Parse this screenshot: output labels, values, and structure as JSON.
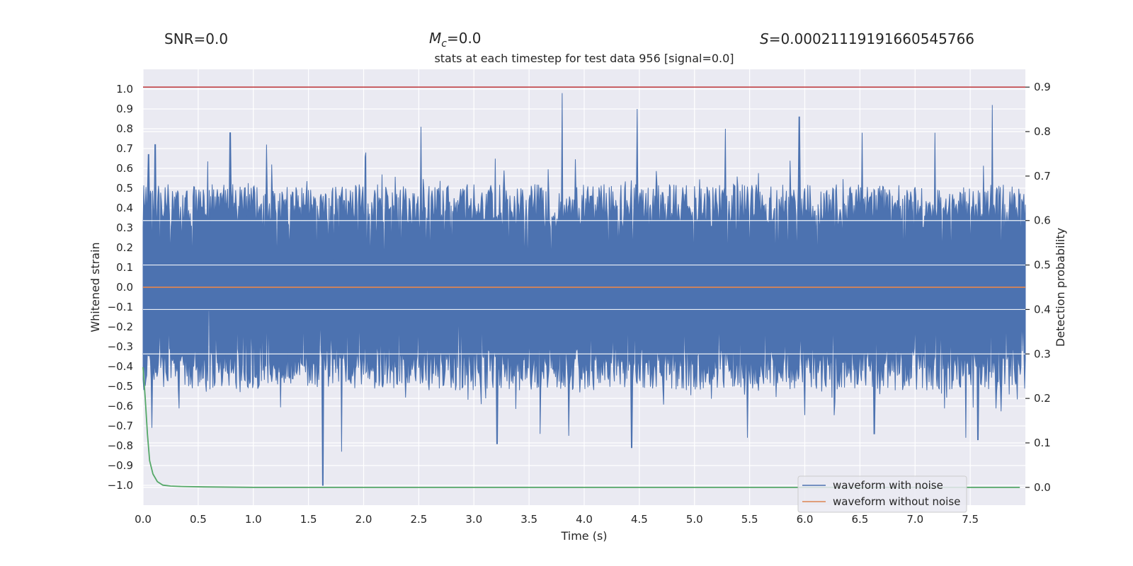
{
  "chart_data": {
    "type": "line",
    "title": "stats at each timestep for test data 956 [signal=0.0]",
    "suptitles": {
      "snr": "SNR=0.0",
      "mc_symbol": "M",
      "mc_sub": "c",
      "mc_value": "=0.0",
      "s_symbol": "S",
      "s_value": "=0.00021119191660545766"
    },
    "xlabel": "Time (s)",
    "ylabel": "Whitened strain",
    "y2label": "Detection probability",
    "xlim": [
      0.0,
      8.0
    ],
    "ylim": [
      -1.1,
      1.1
    ],
    "y2lim": [
      -0.04,
      0.94
    ],
    "xticks": [
      0.0,
      0.5,
      1.0,
      1.5,
      2.0,
      2.5,
      3.0,
      3.5,
      4.0,
      4.5,
      5.0,
      5.5,
      6.0,
      6.5,
      7.0,
      7.5
    ],
    "xtick_labels": [
      "0.0",
      "0.5",
      "1.0",
      "1.5",
      "2.0",
      "2.5",
      "3.0",
      "3.5",
      "4.0",
      "4.5",
      "5.0",
      "5.5",
      "6.0",
      "6.5",
      "7.0",
      "7.5"
    ],
    "yticks": [
      1.0,
      0.9,
      0.8,
      0.7,
      0.6,
      0.5,
      0.4,
      0.3,
      0.2,
      0.1,
      0.0,
      -0.1,
      -0.2,
      -0.3,
      -0.4,
      -0.5,
      -0.6,
      -0.7,
      -0.8,
      -0.9,
      -1.0
    ],
    "ytick_labels": [
      "1.0",
      "0.9",
      "0.8",
      "0.7",
      "0.6",
      "0.5",
      "0.4",
      "0.3",
      "0.2",
      "0.1",
      "0.0",
      "−0.1",
      "−0.2",
      "−0.3",
      "−0.4",
      "−0.5",
      "−0.6",
      "−0.7",
      "−0.8",
      "−0.9",
      "−1.0"
    ],
    "y2ticks": [
      0.9,
      0.8,
      0.7,
      0.6,
      0.5,
      0.4,
      0.3,
      0.2,
      0.1,
      0.0
    ],
    "y2tick_labels": [
      "0.9",
      "0.8",
      "0.7",
      "0.6",
      "0.5",
      "0.4",
      "0.3",
      "0.2",
      "0.1",
      "0.0"
    ],
    "series": [
      {
        "name": "waveform with noise",
        "color": "#4c72b0",
        "kind": "noise",
        "envelope_typical": 0.5,
        "peaks": [
          {
            "x": 0.05,
            "y": 0.67
          },
          {
            "x": 0.11,
            "y": 0.72
          },
          {
            "x": 0.79,
            "y": 0.78
          },
          {
            "x": 1.12,
            "y": 0.72
          },
          {
            "x": 2.02,
            "y": 0.68
          },
          {
            "x": 2.52,
            "y": 0.81
          },
          {
            "x": 3.8,
            "y": 0.98
          },
          {
            "x": 4.48,
            "y": 0.9
          },
          {
            "x": 5.28,
            "y": 0.8
          },
          {
            "x": 5.95,
            "y": 0.86
          },
          {
            "x": 6.52,
            "y": 0.78
          },
          {
            "x": 7.18,
            "y": 0.78
          },
          {
            "x": 7.7,
            "y": 0.92
          },
          {
            "x": 0.08,
            "y": -0.71
          },
          {
            "x": 1.63,
            "y": -1.0
          },
          {
            "x": 1.8,
            "y": -0.83
          },
          {
            "x": 3.21,
            "y": -0.79
          },
          {
            "x": 3.6,
            "y": -0.74
          },
          {
            "x": 3.86,
            "y": -0.75
          },
          {
            "x": 4.43,
            "y": -0.81
          },
          {
            "x": 5.48,
            "y": -0.76
          },
          {
            "x": 6.63,
            "y": -0.74
          },
          {
            "x": 7.46,
            "y": -0.76
          },
          {
            "x": 7.57,
            "y": -0.77
          }
        ]
      },
      {
        "name": "waveform without noise",
        "color": "#dd8452",
        "x": [
          0.0,
          8.0
        ],
        "y": [
          0.0,
          0.0
        ]
      },
      {
        "name": "detection probability",
        "axis": "right",
        "color": "#55a868",
        "x": [
          0.0,
          0.02,
          0.04,
          0.06,
          0.09,
          0.13,
          0.18,
          0.25,
          0.35,
          0.55,
          1.0,
          2.0,
          4.0,
          6.0,
          7.95
        ],
        "y": [
          0.27,
          0.2,
          0.12,
          0.06,
          0.03,
          0.013,
          0.005,
          0.003,
          0.002,
          0.001,
          0.0,
          0.0,
          0.0,
          0.0,
          0.0
        ]
      }
    ],
    "hlines": [
      {
        "axis": "right",
        "y": 0.9,
        "color": "#c44e52"
      }
    ],
    "legend": {
      "placement": "lower-right",
      "entries": [
        {
          "label": "waveform with noise",
          "color": "#4c72b0"
        },
        {
          "label": "waveform without noise",
          "color": "#dd8452"
        }
      ]
    },
    "style": {
      "axes_face": "#eaeaf2",
      "grid_color": "#ffffff",
      "text_color": "#262626"
    }
  }
}
